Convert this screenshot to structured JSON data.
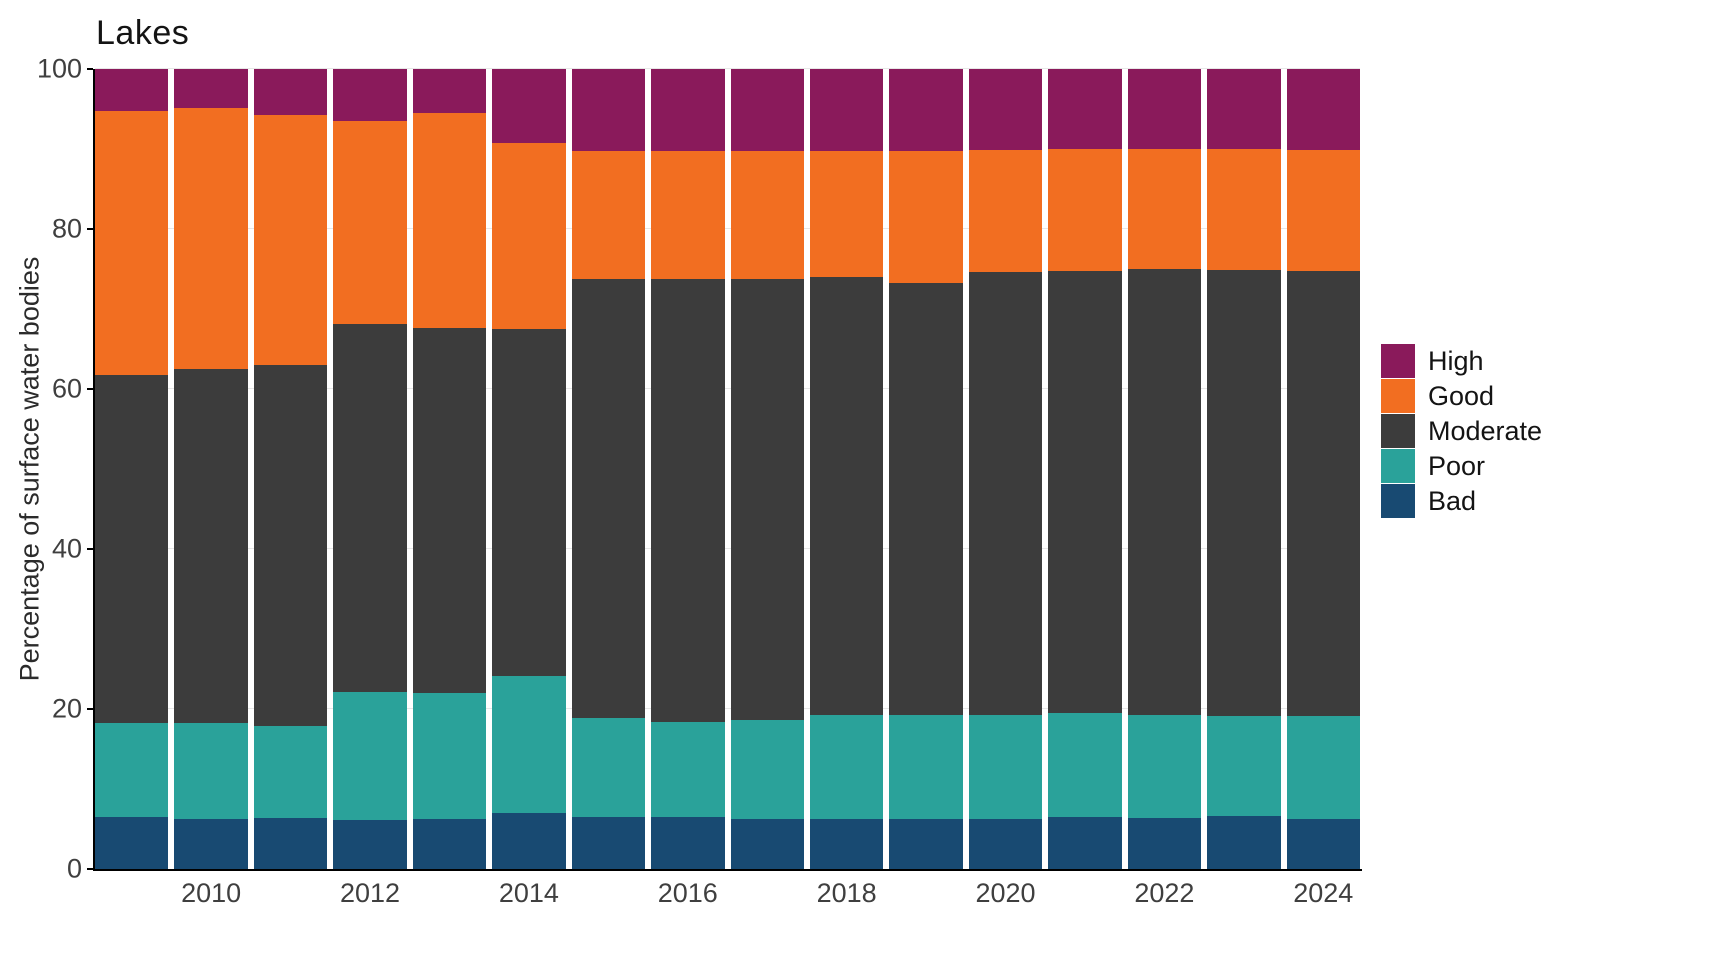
{
  "title": "Lakes",
  "y_axis": {
    "label": "Percentage of surface water bodies",
    "ticks": [
      "0",
      "20",
      "40",
      "60",
      "80",
      "100"
    ],
    "range": [
      0,
      100
    ]
  },
  "x_axis": {
    "tick_labels": [
      "2010",
      "2012",
      "2014",
      "2016",
      "2018",
      "2020",
      "2022",
      "2024"
    ]
  },
  "legend": {
    "items": [
      {
        "label": "High",
        "color": "#8A1A5B"
      },
      {
        "label": "Good",
        "color": "#F26E21"
      },
      {
        "label": "Moderate",
        "color": "#3C3C3C"
      },
      {
        "label": "Poor",
        "color": "#2AA29A"
      },
      {
        "label": "Bad",
        "color": "#184A72"
      }
    ]
  },
  "colors": {
    "high": "#8A1A5B",
    "good": "#F26E21",
    "moderate": "#3C3C3C",
    "poor": "#2AA29A",
    "bad": "#184A72",
    "axis": "#000000",
    "tick_text": "#3F3F3F",
    "grid": "#E7E7E7",
    "background": "#FFFFFF"
  },
  "chart_data": {
    "type": "bar",
    "stacked": true,
    "title": "Lakes",
    "xlabel": "",
    "ylabel": "Percentage of surface water bodies",
    "ylim": [
      0,
      100
    ],
    "grid": true,
    "legend_position": "right",
    "categories": [
      "2009",
      "2010",
      "2011",
      "2012",
      "2013",
      "2014",
      "2015",
      "2016",
      "2017",
      "2018",
      "2019",
      "2020",
      "2021",
      "2022",
      "2023",
      "2024"
    ],
    "series": [
      {
        "name": "Bad",
        "color": "#184A72",
        "values": [
          6.5,
          6.3,
          6.4,
          6.1,
          6.3,
          7.0,
          6.5,
          6.5,
          6.3,
          6.2,
          6.3,
          6.2,
          6.5,
          6.4,
          6.6,
          6.3
        ]
      },
      {
        "name": "Poor",
        "color": "#2AA29A",
        "values": [
          11.8,
          11.9,
          11.5,
          16.0,
          15.7,
          17.1,
          12.4,
          11.9,
          12.3,
          13.0,
          12.9,
          13.0,
          13.0,
          12.8,
          12.5,
          12.8
        ]
      },
      {
        "name": "Moderate",
        "color": "#3C3C3C",
        "values": [
          43.5,
          44.3,
          45.1,
          46.0,
          45.6,
          43.4,
          54.8,
          55.3,
          55.2,
          54.8,
          54.1,
          55.4,
          55.3,
          55.8,
          55.8,
          55.7
        ]
      },
      {
        "name": "Good",
        "color": "#F26E21",
        "values": [
          33.0,
          32.6,
          31.2,
          25.4,
          26.9,
          23.2,
          16.1,
          16.0,
          16.0,
          15.8,
          16.5,
          15.3,
          15.2,
          15.0,
          15.1,
          15.1
        ]
      },
      {
        "name": "High",
        "color": "#8A1A5B",
        "values": [
          5.2,
          4.9,
          5.8,
          6.5,
          5.5,
          9.3,
          10.2,
          10.3,
          10.2,
          10.2,
          10.2,
          10.1,
          10.0,
          10.0,
          10.0,
          10.1
        ]
      }
    ],
    "x_tick_label_indices": [
      1,
      3,
      5,
      7,
      9,
      11,
      13,
      15
    ]
  }
}
